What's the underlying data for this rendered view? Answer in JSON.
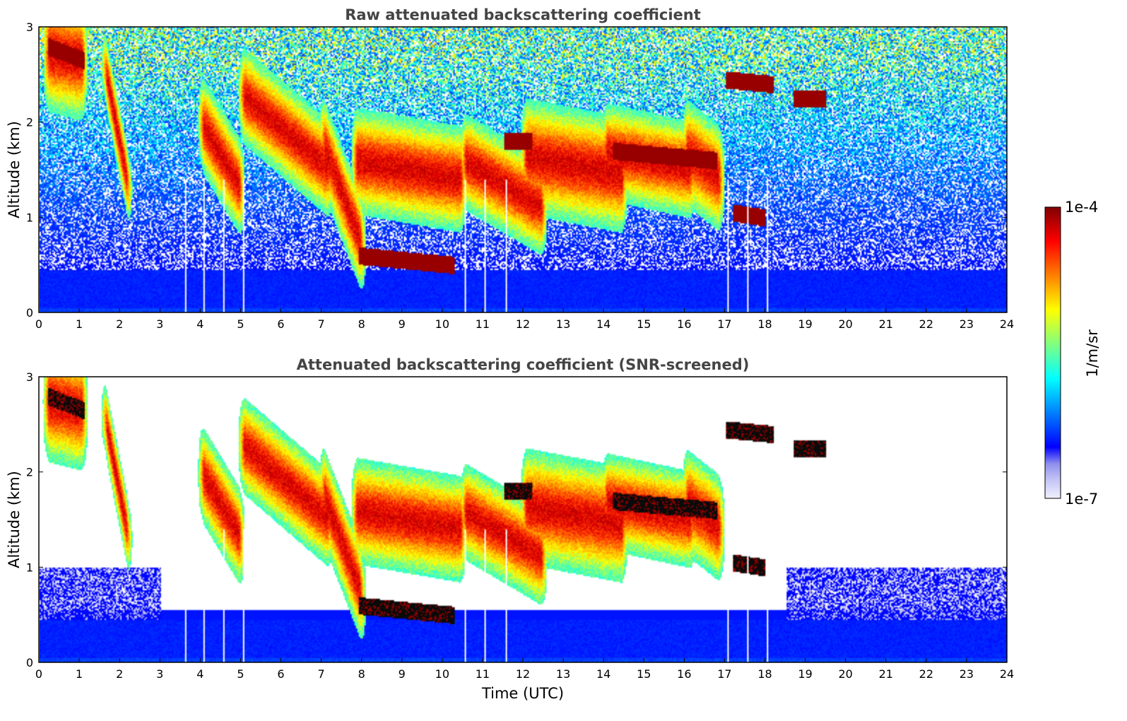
{
  "chart_data": [
    {
      "type": "heatmap",
      "title": "Raw attenuated backscattering coefficient",
      "xlabel": "",
      "ylabel": "Altitude (km)",
      "xlim": [
        0,
        24
      ],
      "ylim": [
        0,
        3
      ],
      "xticks": [
        "0",
        "1",
        "2",
        "3",
        "4",
        "5",
        "6",
        "7",
        "8",
        "9",
        "10",
        "11",
        "12",
        "13",
        "14",
        "15",
        "16",
        "17",
        "18",
        "19",
        "20",
        "21",
        "22",
        "23",
        "24"
      ],
      "yticks": [
        "0",
        "1",
        "2",
        "3"
      ],
      "screened": false
    },
    {
      "type": "heatmap",
      "title": "Attenuated backscattering coefficient (SNR-screened)",
      "xlabel": "Time (UTC)",
      "ylabel": "Altitude (km)",
      "xlim": [
        0,
        24
      ],
      "ylim": [
        0,
        3
      ],
      "xticks": [
        "0",
        "1",
        "2",
        "3",
        "4",
        "5",
        "6",
        "7",
        "8",
        "9",
        "10",
        "11",
        "12",
        "13",
        "14",
        "15",
        "16",
        "17",
        "18",
        "19",
        "20",
        "21",
        "22",
        "23",
        "24"
      ],
      "yticks": [
        "0",
        "1",
        "2",
        "3"
      ],
      "screened": true
    }
  ],
  "colorbar": {
    "label": "1/m/sr",
    "max_label": "1e-4",
    "min_label": "1e-7",
    "range": [
      1e-07,
      0.0001
    ],
    "colors": [
      "#f0f0ff",
      "#c8c8f5",
      "#9090ee",
      "#0000ff",
      "#0040ff",
      "#0080ff",
      "#00c0ff",
      "#00ffff",
      "#40ffc0",
      "#80ff80",
      "#c0ff40",
      "#ffff00",
      "#ffc000",
      "#ff8000",
      "#ff4000",
      "#ff0000",
      "#c00000",
      "#800000"
    ]
  },
  "layers": {
    "cloud_tracks": [
      [
        0.15,
        2.75,
        1.1,
        2.65,
        2.5
      ],
      [
        1.6,
        2.6,
        2.2,
        1.3,
        1.5
      ],
      [
        4.0,
        2.0,
        5.0,
        1.3,
        2.0
      ],
      [
        5.0,
        2.3,
        7.2,
        1.5,
        2.0
      ],
      [
        7.0,
        1.8,
        8.0,
        0.7,
        2.0
      ],
      [
        7.8,
        1.6,
        10.5,
        1.4,
        2.2
      ],
      [
        10.5,
        1.6,
        12.5,
        1.1,
        2.0
      ],
      [
        12.0,
        1.65,
        14.5,
        1.45,
        2.4
      ],
      [
        14.0,
        1.7,
        16.2,
        1.5,
        2.0
      ],
      [
        16.0,
        1.7,
        16.9,
        1.4,
        2.2
      ]
    ],
    "dense_layers": [
      [
        0.2,
        2.8,
        1.1,
        2.65
      ],
      [
        11.5,
        1.8,
        12.2,
        1.8
      ],
      [
        14.2,
        1.7,
        16.8,
        1.6
      ],
      [
        18.7,
        2.25,
        19.5,
        2.25
      ],
      [
        17.0,
        2.45,
        18.2,
        2.4
      ],
      [
        17.2,
        1.05,
        18.0,
        1.0
      ],
      [
        7.9,
        0.6,
        10.3,
        0.5
      ]
    ],
    "gaps_hours": [
      3.6,
      4.05,
      4.55,
      5.05,
      10.55,
      11.05,
      11.55,
      17.05,
      17.55,
      18.05
    ]
  }
}
